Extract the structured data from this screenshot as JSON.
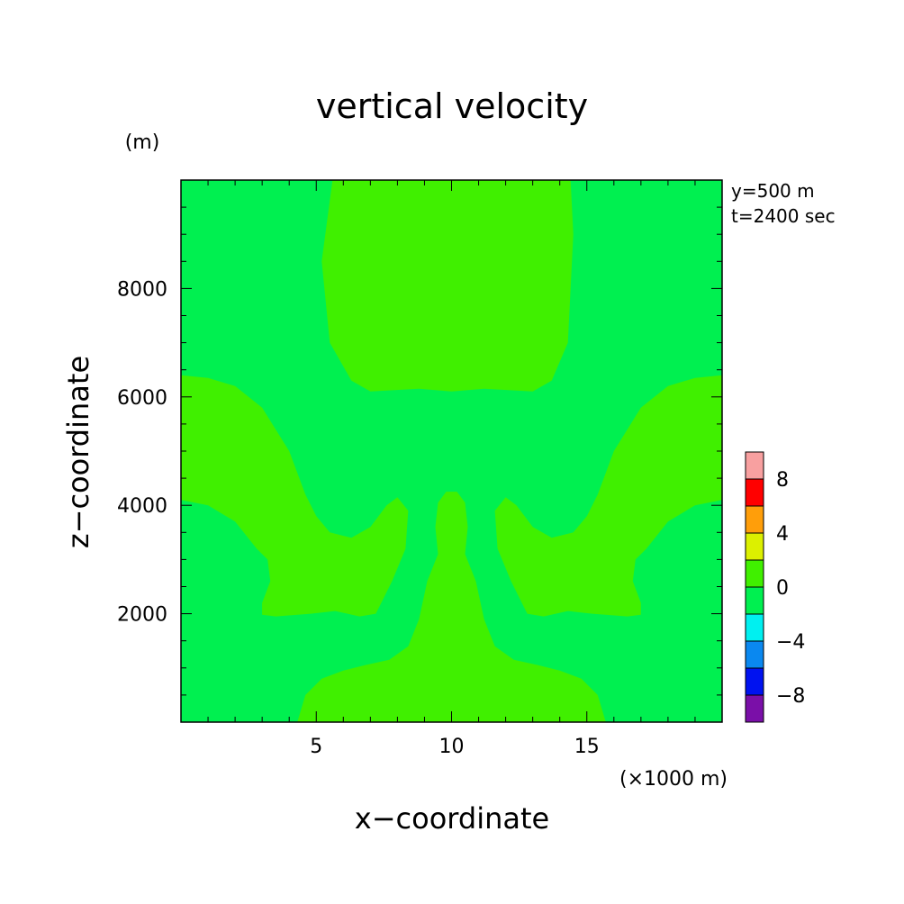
{
  "chart_data": {
    "type": "heatmap",
    "title": "vertical velocity",
    "xlabel": "x−coordinate",
    "ylabel": "z−coordinate",
    "x_unit": "(×1000 m)",
    "y_unit": "(m)",
    "annotations": [
      "y=500 m",
      "t=2400 sec"
    ],
    "xlim": [
      0,
      20
    ],
    "ylim": [
      0,
      10000
    ],
    "x_ticks": [
      {
        "value": 5,
        "label": "5"
      },
      {
        "value": 10,
        "label": "10"
      },
      {
        "value": 15,
        "label": "15"
      }
    ],
    "y_ticks": [
      {
        "value": 2000,
        "label": "2000"
      },
      {
        "value": 4000,
        "label": "4000"
      },
      {
        "value": 6000,
        "label": "6000"
      },
      {
        "value": 8000,
        "label": "8000"
      }
    ],
    "colorbar": {
      "bins": [
        {
          "min": -10,
          "max": -8,
          "color": "#7a0fa8"
        },
        {
          "min": -8,
          "max": -6,
          "color": "#0012f0"
        },
        {
          "min": -6,
          "max": -4,
          "color": "#0a88f0"
        },
        {
          "min": -4,
          "max": -2,
          "color": "#00f0f0"
        },
        {
          "min": -2,
          "max": 0,
          "color": "#00f050"
        },
        {
          "min": 0,
          "max": 2,
          "color": "#40f000"
        },
        {
          "min": 2,
          "max": 4,
          "color": "#dcf000"
        },
        {
          "min": 4,
          "max": 6,
          "color": "#ff9e0a"
        },
        {
          "min": 6,
          "max": 8,
          "color": "#ff0000"
        },
        {
          "min": 8,
          "max": 10,
          "color": "#f8a0a0"
        }
      ],
      "tick_labels": [
        {
          "value": -8,
          "label": "−8"
        },
        {
          "value": -4,
          "label": "−4"
        },
        {
          "value": 0,
          "label": "0"
        },
        {
          "value": 4,
          "label": "4"
        },
        {
          "value": 8,
          "label": "8"
        }
      ]
    },
    "field": {
      "background_bin": "-2 to 0",
      "regions": [
        {
          "name": "upper-central",
          "bin": "0 to 2",
          "points": [
            [
              5.6,
              10000
            ],
            [
              14.4,
              10000
            ],
            [
              14.5,
              9000
            ],
            [
              14.3,
              7000
            ],
            [
              13.7,
              6300
            ],
            [
              13,
              6100
            ],
            [
              11.2,
              6150
            ],
            [
              10,
              6100
            ],
            [
              8.8,
              6150
            ],
            [
              7,
              6100
            ],
            [
              6.3,
              6300
            ],
            [
              5.5,
              7000
            ],
            [
              5.2,
              8500
            ],
            [
              5.6,
              10000
            ]
          ]
        },
        {
          "name": "left-lobe",
          "bin": "0 to 2",
          "points": [
            [
              0,
              6400
            ],
            [
              1,
              6350
            ],
            [
              2,
              6200
            ],
            [
              3,
              5800
            ],
            [
              4,
              5000
            ],
            [
              4.6,
              4200
            ],
            [
              5,
              3800
            ],
            [
              5.5,
              3500
            ],
            [
              6.3,
              3400
            ],
            [
              7,
              3600
            ],
            [
              7.6,
              4000
            ],
            [
              8,
              4150
            ],
            [
              8.4,
              3900
            ],
            [
              8.3,
              3200
            ],
            [
              7.8,
              2600
            ],
            [
              7.2,
              2000
            ],
            [
              6.6,
              1950
            ],
            [
              5.7,
              2050
            ],
            [
              4.8,
              2000
            ],
            [
              3.5,
              1950
            ],
            [
              3,
              1980
            ],
            [
              3,
              2200
            ],
            [
              3.3,
              2600
            ],
            [
              3.2,
              3000
            ],
            [
              2.8,
              3200
            ],
            [
              2,
              3700
            ],
            [
              1,
              4000
            ],
            [
              0,
              4100
            ],
            [
              0,
              6400
            ]
          ]
        },
        {
          "name": "right-lobe",
          "bin": "0 to 2",
          "points": [
            [
              20,
              6400
            ],
            [
              19,
              6350
            ],
            [
              18,
              6200
            ],
            [
              17,
              5800
            ],
            [
              16,
              5000
            ],
            [
              15.4,
              4200
            ],
            [
              15,
              3800
            ],
            [
              14.5,
              3500
            ],
            [
              13.7,
              3400
            ],
            [
              13,
              3600
            ],
            [
              12.4,
              4000
            ],
            [
              12,
              4150
            ],
            [
              11.6,
              3900
            ],
            [
              11.7,
              3200
            ],
            [
              12.2,
              2600
            ],
            [
              12.8,
              2000
            ],
            [
              13.4,
              1950
            ],
            [
              14.3,
              2050
            ],
            [
              15.2,
              2000
            ],
            [
              16.5,
              1950
            ],
            [
              17,
              1980
            ],
            [
              17,
              2200
            ],
            [
              16.7,
              2600
            ],
            [
              16.8,
              3000
            ],
            [
              17.2,
              3200
            ],
            [
              18,
              3700
            ],
            [
              19,
              4000
            ],
            [
              20,
              4100
            ],
            [
              20,
              6400
            ]
          ]
        },
        {
          "name": "bottom-stem",
          "bin": "0 to 2",
          "points": [
            [
              4.3,
              0
            ],
            [
              15.7,
              0
            ],
            [
              15.4,
              500
            ],
            [
              14.8,
              800
            ],
            [
              14,
              950
            ],
            [
              13.2,
              1050
            ],
            [
              12.3,
              1150
            ],
            [
              11.6,
              1400
            ],
            [
              11.2,
              1900
            ],
            [
              10.9,
              2600
            ],
            [
              10.5,
              3100
            ],
            [
              10.6,
              3600
            ],
            [
              10.5,
              4050
            ],
            [
              10.2,
              4250
            ],
            [
              9.8,
              4250
            ],
            [
              9.5,
              4050
            ],
            [
              9.4,
              3600
            ],
            [
              9.5,
              3100
            ],
            [
              9.1,
              2600
            ],
            [
              8.8,
              1900
            ],
            [
              8.4,
              1400
            ],
            [
              7.7,
              1150
            ],
            [
              6.8,
              1050
            ],
            [
              6,
              950
            ],
            [
              5.2,
              800
            ],
            [
              4.6,
              500
            ],
            [
              4.3,
              0
            ]
          ]
        }
      ]
    }
  }
}
